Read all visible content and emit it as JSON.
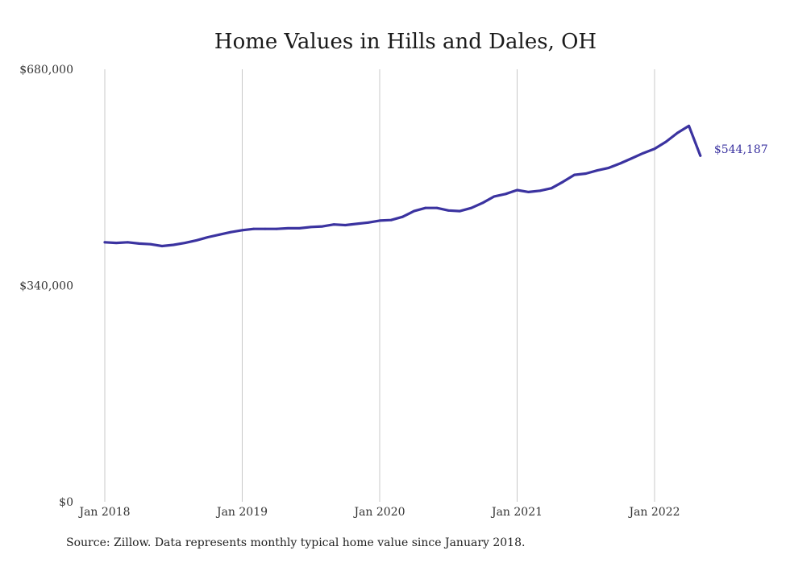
{
  "chart_data": {
    "type": "line",
    "title": "Home Values in Hills and Dales, OH",
    "xlabel": "",
    "ylabel": "",
    "x_range": [
      "2018-01",
      "2022-05"
    ],
    "ylim": [
      0,
      680000
    ],
    "y_ticks": [
      {
        "value": 0,
        "label": "$0"
      },
      {
        "value": 340000,
        "label": "$340,000"
      },
      {
        "value": 680000,
        "label": "$680,000"
      }
    ],
    "x_ticks": [
      {
        "value": "2018-01",
        "label": "Jan 2018"
      },
      {
        "value": "2019-01",
        "label": "Jan 2019"
      },
      {
        "value": "2020-01",
        "label": "Jan 2020"
      },
      {
        "value": "2021-01",
        "label": "Jan 2021"
      },
      {
        "value": "2022-01",
        "label": "Jan 2022"
      }
    ],
    "grid": "vertical",
    "series": [
      {
        "color": "#3b33a0",
        "x": [
          "2018-01",
          "2018-02",
          "2018-03",
          "2018-04",
          "2018-05",
          "2018-06",
          "2018-07",
          "2018-08",
          "2018-09",
          "2018-10",
          "2018-11",
          "2018-12",
          "2019-01",
          "2019-02",
          "2019-03",
          "2019-04",
          "2019-05",
          "2019-06",
          "2019-07",
          "2019-08",
          "2019-09",
          "2019-10",
          "2019-11",
          "2019-12",
          "2020-01",
          "2020-02",
          "2020-03",
          "2020-04",
          "2020-05",
          "2020-06",
          "2020-07",
          "2020-08",
          "2020-09",
          "2020-10",
          "2020-11",
          "2020-12",
          "2021-01",
          "2021-02",
          "2021-03",
          "2021-04",
          "2021-05",
          "2021-06",
          "2021-07",
          "2021-08",
          "2021-09",
          "2021-10",
          "2021-11",
          "2021-12",
          "2022-01",
          "2022-02",
          "2022-03",
          "2022-04",
          "2022-05"
        ],
        "values": [
          408000,
          407000,
          408000,
          406000,
          405000,
          402000,
          404000,
          407000,
          411000,
          416000,
          420000,
          424000,
          427000,
          429000,
          429000,
          429000,
          430000,
          430000,
          432000,
          433000,
          436000,
          435000,
          437000,
          439000,
          442000,
          443000,
          448000,
          457000,
          462000,
          462000,
          458000,
          457000,
          462000,
          470000,
          480000,
          484000,
          490000,
          487000,
          489000,
          493000,
          503000,
          514000,
          516000,
          521000,
          525000,
          532000,
          540000,
          548000,
          555000,
          566000,
          580000,
          591000,
          544187
        ]
      }
    ],
    "end_label": "$544,187"
  },
  "footer": {
    "source": "Source: Zillow. Data represents monthly typical home value since January 2018."
  }
}
